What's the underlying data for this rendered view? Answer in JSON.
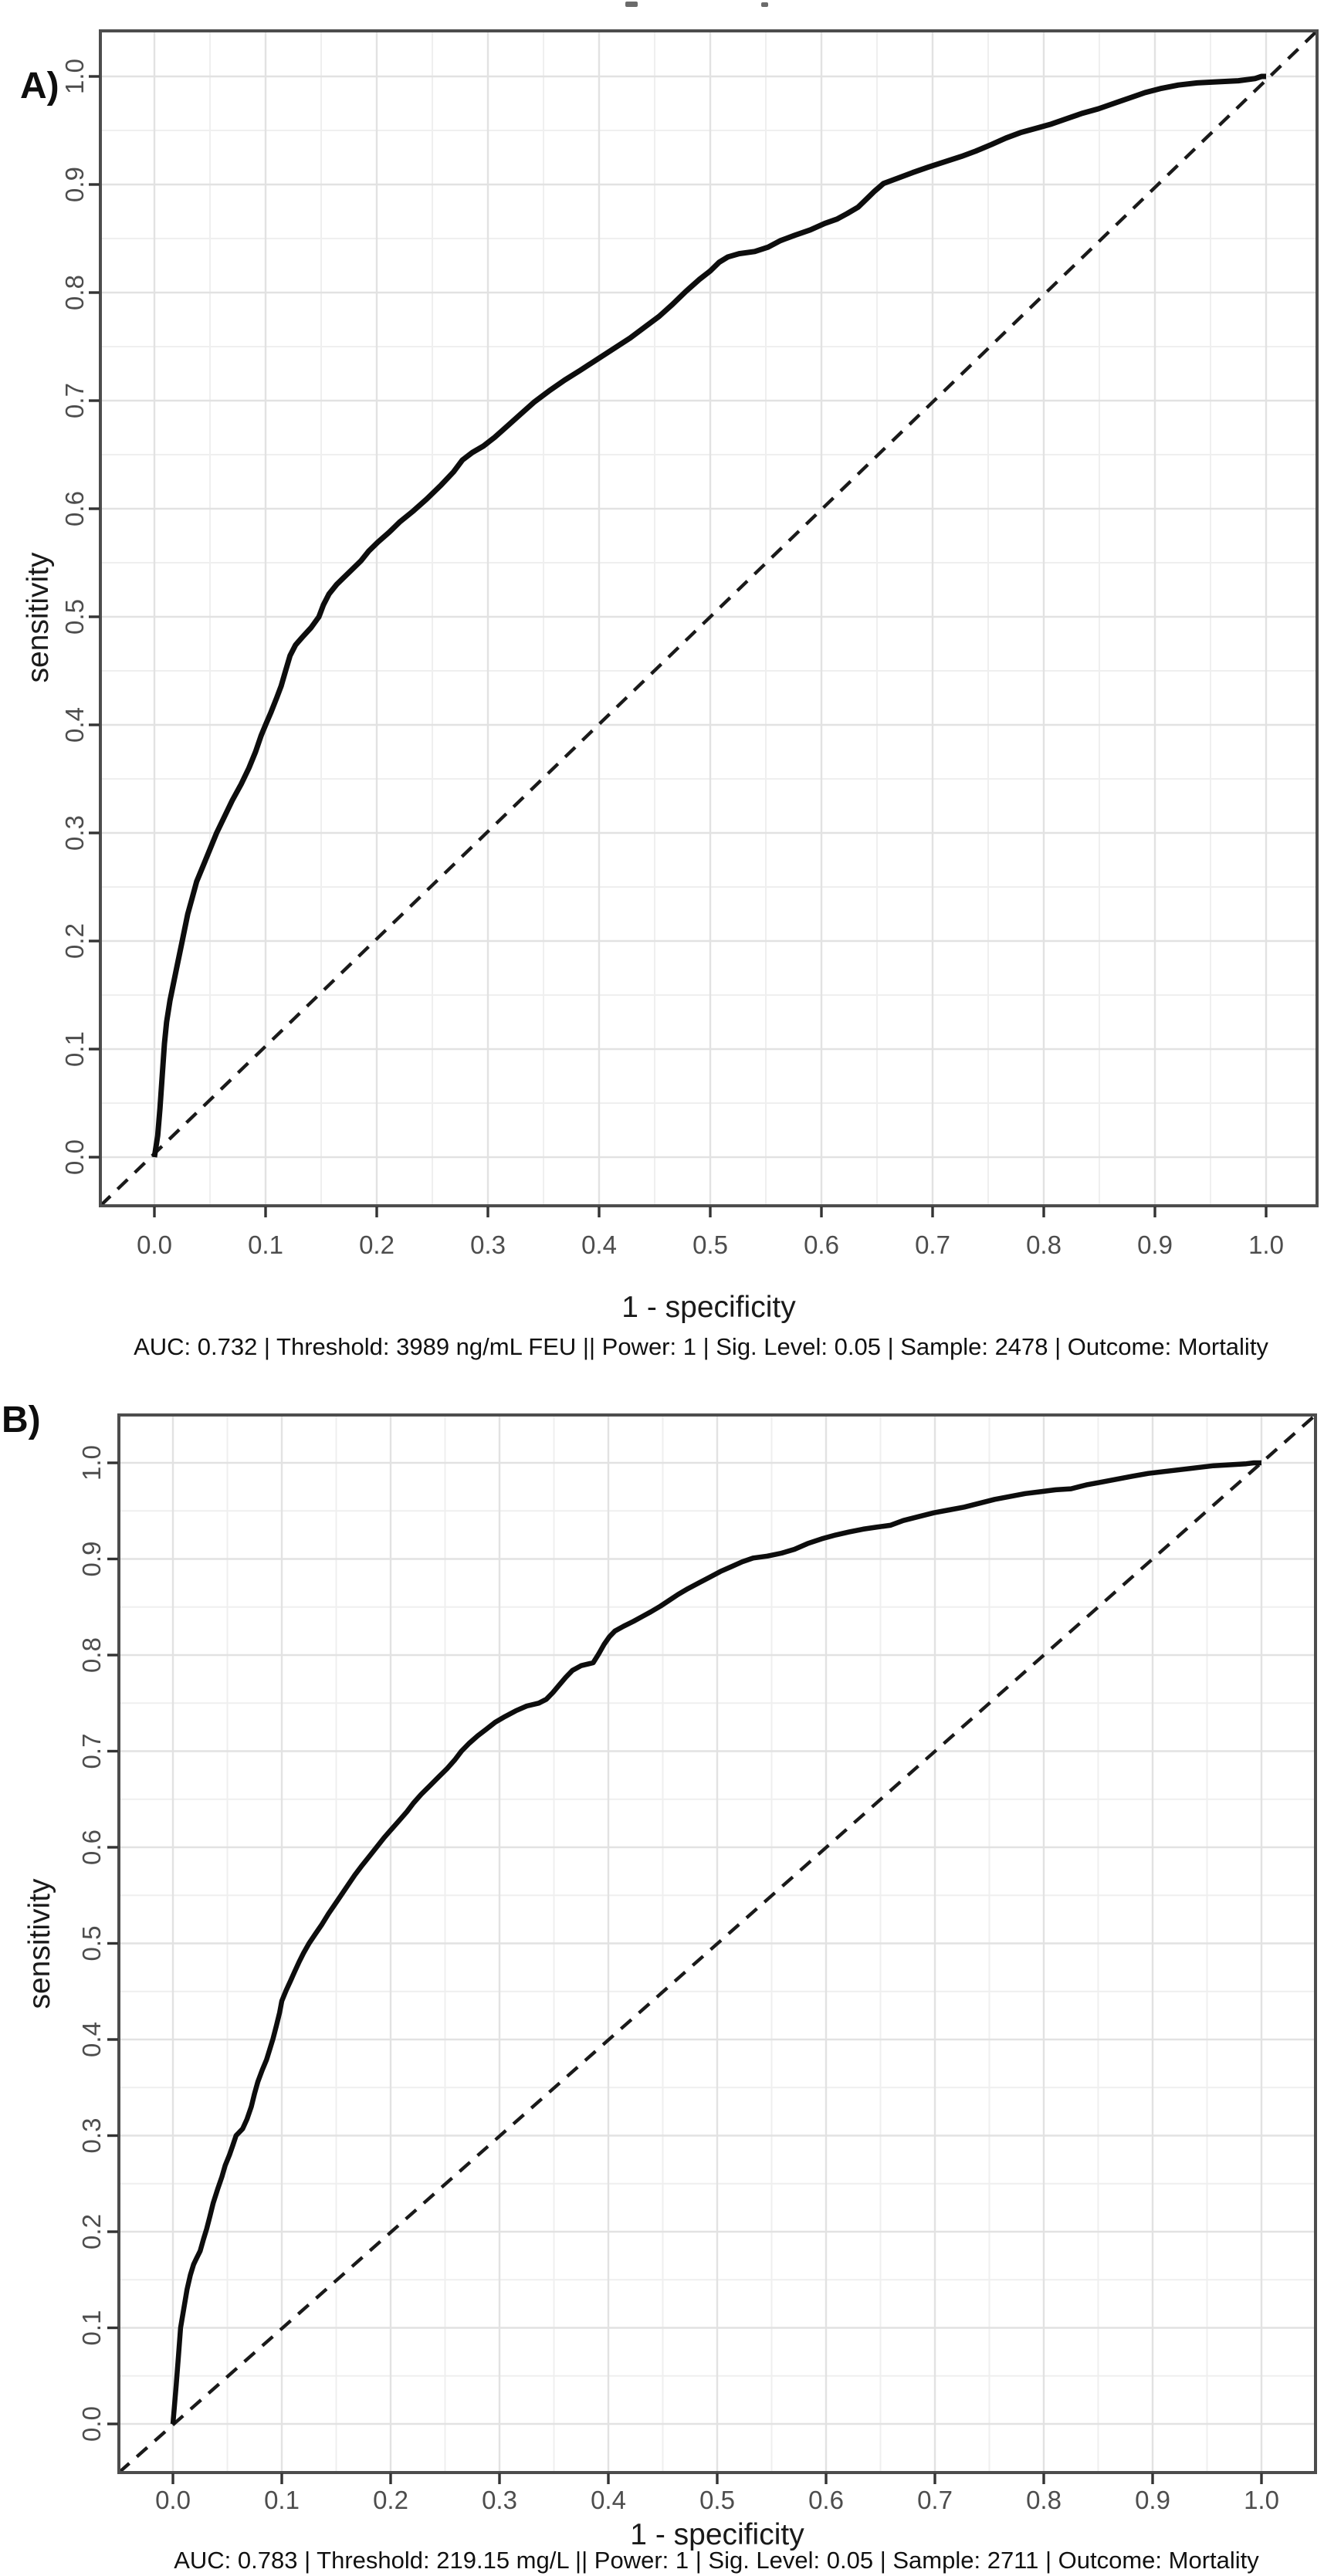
{
  "page": {
    "background": "#ffffff"
  },
  "colors": {
    "curve": "#0d0d0d",
    "diagonal": "#1a1a1a",
    "grid_major": "#e2e2e2",
    "grid_minor": "#efefef",
    "border": "#4d4d4d",
    "tick": "#333333",
    "tick_label": "#4d4d4d",
    "text": "#1a1a1a"
  },
  "figures": [
    {
      "panel_label": "A)",
      "caption": "AUC: 0.732 | Threshold: 3989 ng/mL FEU || Power: 1 | Sig. Level: 0.05 | Sample: 2478 | Outcome: Mortality",
      "stats": {
        "auc": 0.732,
        "threshold": "3989 ng/mL FEU",
        "power": 1,
        "sig_level": 0.05,
        "sample": 2478,
        "outcome": "Mortality"
      }
    },
    {
      "panel_label": "B)",
      "caption": "AUC: 0.783 | Threshold: 219.15 mg/L || Power: 1 | Sig. Level: 0.05 | Sample: 2711 | Outcome: Mortality",
      "stats": {
        "auc": 0.783,
        "threshold": "219.15 mg/L",
        "power": 1,
        "sig_level": 0.05,
        "sample": 2711,
        "outcome": "Mortality"
      }
    }
  ],
  "chart_data": [
    {
      "type": "line",
      "title": "",
      "xlabel": "1 - specificity",
      "ylabel": "sensitivity",
      "xlim": [
        0,
        1
      ],
      "ylim": [
        0,
        1
      ],
      "grid": "major+minor",
      "legend": "none",
      "x_tick_labels": [
        "0.0",
        "0.1",
        "0.2",
        "0.3",
        "0.4",
        "0.5",
        "0.6",
        "0.7",
        "0.8",
        "0.9",
        "1.0"
      ],
      "y_tick_labels": [
        "0.0",
        "0.1",
        "0.2",
        "0.3",
        "0.4",
        "0.5",
        "0.6",
        "0.7",
        "0.8",
        "0.9",
        "1.0"
      ],
      "series": [
        {
          "name": "roc-curve",
          "style": "solid",
          "points": [
            [
              0,
              0
            ],
            [
              0.003,
              0.02
            ],
            [
              0.005,
              0.045
            ],
            [
              0.007,
              0.075
            ],
            [
              0.009,
              0.105
            ],
            [
              0.011,
              0.125
            ],
            [
              0.014,
              0.145
            ],
            [
              0.017,
              0.16
            ],
            [
              0.02,
              0.175
            ],
            [
              0.024,
              0.195
            ],
            [
              0.027,
              0.21
            ],
            [
              0.03,
              0.225
            ],
            [
              0.034,
              0.24
            ],
            [
              0.038,
              0.255
            ],
            [
              0.044,
              0.27
            ],
            [
              0.05,
              0.285
            ],
            [
              0.056,
              0.3
            ],
            [
              0.063,
              0.315
            ],
            [
              0.07,
              0.33
            ],
            [
              0.078,
              0.345
            ],
            [
              0.085,
              0.36
            ],
            [
              0.091,
              0.375
            ],
            [
              0.096,
              0.39
            ],
            [
              0.1,
              0.4
            ],
            [
              0.105,
              0.412
            ],
            [
              0.11,
              0.425
            ],
            [
              0.114,
              0.436
            ],
            [
              0.118,
              0.45
            ],
            [
              0.122,
              0.464
            ],
            [
              0.127,
              0.474
            ],
            [
              0.133,
              0.481
            ],
            [
              0.141,
              0.49
            ],
            [
              0.148,
              0.5
            ],
            [
              0.152,
              0.511
            ],
            [
              0.157,
              0.521
            ],
            [
              0.164,
              0.53
            ],
            [
              0.171,
              0.537
            ],
            [
              0.179,
              0.545
            ],
            [
              0.186,
              0.552
            ],
            [
              0.193,
              0.561
            ],
            [
              0.201,
              0.569
            ],
            [
              0.211,
              0.578
            ],
            [
              0.221,
              0.588
            ],
            [
              0.233,
              0.598
            ],
            [
              0.245,
              0.609
            ],
            [
              0.258,
              0.622
            ],
            [
              0.269,
              0.634
            ],
            [
              0.277,
              0.645
            ],
            [
              0.286,
              0.652
            ],
            [
              0.296,
              0.658
            ],
            [
              0.306,
              0.666
            ],
            [
              0.318,
              0.677
            ],
            [
              0.33,
              0.688
            ],
            [
              0.342,
              0.699
            ],
            [
              0.355,
              0.709
            ],
            [
              0.369,
              0.719
            ],
            [
              0.383,
              0.728
            ],
            [
              0.398,
              0.738
            ],
            [
              0.413,
              0.748
            ],
            [
              0.428,
              0.758
            ],
            [
              0.441,
              0.768
            ],
            [
              0.454,
              0.778
            ],
            [
              0.466,
              0.789
            ],
            [
              0.478,
              0.801
            ],
            [
              0.49,
              0.812
            ],
            [
              0.5,
              0.82
            ],
            [
              0.508,
              0.828
            ],
            [
              0.516,
              0.833
            ],
            [
              0.526,
              0.836
            ],
            [
              0.54,
              0.838
            ],
            [
              0.552,
              0.842
            ],
            [
              0.563,
              0.848
            ],
            [
              0.576,
              0.853
            ],
            [
              0.59,
              0.858
            ],
            [
              0.603,
              0.864
            ],
            [
              0.614,
              0.868
            ],
            [
              0.623,
              0.873
            ],
            [
              0.633,
              0.879
            ],
            [
              0.641,
              0.887
            ],
            [
              0.648,
              0.894
            ],
            [
              0.656,
              0.901
            ],
            [
              0.669,
              0.906
            ],
            [
              0.682,
              0.911
            ],
            [
              0.696,
              0.916
            ],
            [
              0.711,
              0.921
            ],
            [
              0.726,
              0.926
            ],
            [
              0.739,
              0.931
            ],
            [
              0.753,
              0.937
            ],
            [
              0.766,
              0.943
            ],
            [
              0.779,
              0.948
            ],
            [
              0.793,
              0.952
            ],
            [
              0.807,
              0.956
            ],
            [
              0.821,
              0.961
            ],
            [
              0.835,
              0.966
            ],
            [
              0.849,
              0.97
            ],
            [
              0.863,
              0.975
            ],
            [
              0.877,
              0.98
            ],
            [
              0.891,
              0.985
            ],
            [
              0.906,
              0.989
            ],
            [
              0.921,
              0.992
            ],
            [
              0.938,
              0.994
            ],
            [
              0.956,
              0.995
            ],
            [
              0.975,
              0.996
            ],
            [
              0.99,
              0.998
            ],
            [
              0.996,
              1
            ],
            [
              1,
              1
            ]
          ]
        },
        {
          "name": "chance-diagonal",
          "style": "dashed",
          "points": [
            [
              0,
              0
            ],
            [
              1,
              1
            ]
          ]
        }
      ],
      "annotation": "AUC: 0.732 | Threshold: 3989 ng/mL FEU || Power: 1 | Sig. Level: 0.05 | Sample: 2478 | Outcome: Mortality"
    },
    {
      "type": "line",
      "title": "",
      "xlabel": "1 - specificity",
      "ylabel": "sensitivity",
      "xlim": [
        0,
        1
      ],
      "ylim": [
        0,
        1
      ],
      "grid": "major+minor",
      "legend": "none",
      "x_tick_labels": [
        "0.0",
        "0.1",
        "0.2",
        "0.3",
        "0.4",
        "0.5",
        "0.6",
        "0.7",
        "0.8",
        "0.9",
        "1.0"
      ],
      "y_tick_labels": [
        "0.0",
        "0.1",
        "0.2",
        "0.3",
        "0.4",
        "0.5",
        "0.6",
        "0.7",
        "0.8",
        "0.9",
        "1.0"
      ],
      "series": [
        {
          "name": "roc-curve",
          "style": "solid",
          "points": [
            [
              0,
              0
            ],
            [
              0.003,
              0.04
            ],
            [
              0.005,
              0.07
            ],
            [
              0.007,
              0.1
            ],
            [
              0.01,
              0.12
            ],
            [
              0.013,
              0.14
            ],
            [
              0.016,
              0.155
            ],
            [
              0.019,
              0.166
            ],
            [
              0.022,
              0.173
            ],
            [
              0.025,
              0.18
            ],
            [
              0.028,
              0.192
            ],
            [
              0.031,
              0.203
            ],
            [
              0.034,
              0.216
            ],
            [
              0.037,
              0.23
            ],
            [
              0.041,
              0.244
            ],
            [
              0.045,
              0.257
            ],
            [
              0.048,
              0.269
            ],
            [
              0.052,
              0.28
            ],
            [
              0.055,
              0.29
            ],
            [
              0.058,
              0.3
            ],
            [
              0.064,
              0.307
            ],
            [
              0.068,
              0.317
            ],
            [
              0.072,
              0.33
            ],
            [
              0.075,
              0.344
            ],
            [
              0.078,
              0.356
            ],
            [
              0.082,
              0.368
            ],
            [
              0.086,
              0.379
            ],
            [
              0.089,
              0.39
            ],
            [
              0.092,
              0.401
            ],
            [
              0.095,
              0.414
            ],
            [
              0.098,
              0.428
            ],
            [
              0.1,
              0.44
            ],
            [
              0.104,
              0.451
            ],
            [
              0.108,
              0.461
            ],
            [
              0.112,
              0.471
            ],
            [
              0.116,
              0.481
            ],
            [
              0.12,
              0.49
            ],
            [
              0.125,
              0.5
            ],
            [
              0.131,
              0.51
            ],
            [
              0.137,
              0.52
            ],
            [
              0.143,
              0.531
            ],
            [
              0.149,
              0.541
            ],
            [
              0.155,
              0.551
            ],
            [
              0.161,
              0.561
            ],
            [
              0.167,
              0.571
            ],
            [
              0.173,
              0.58
            ],
            [
              0.18,
              0.59
            ],
            [
              0.187,
              0.6
            ],
            [
              0.194,
              0.61
            ],
            [
              0.201,
              0.619
            ],
            [
              0.208,
              0.628
            ],
            [
              0.215,
              0.637
            ],
            [
              0.221,
              0.646
            ],
            [
              0.228,
              0.655
            ],
            [
              0.236,
              0.664
            ],
            [
              0.244,
              0.673
            ],
            [
              0.252,
              0.682
            ],
            [
              0.259,
              0.691
            ],
            [
              0.265,
              0.7
            ],
            [
              0.272,
              0.708
            ],
            [
              0.28,
              0.716
            ],
            [
              0.288,
              0.723
            ],
            [
              0.296,
              0.73
            ],
            [
              0.305,
              0.736
            ],
            [
              0.315,
              0.742
            ],
            [
              0.325,
              0.747
            ],
            [
              0.336,
              0.75
            ],
            [
              0.343,
              0.754
            ],
            [
              0.349,
              0.761
            ],
            [
              0.355,
              0.769
            ],
            [
              0.361,
              0.777
            ],
            [
              0.367,
              0.784
            ],
            [
              0.375,
              0.789
            ],
            [
              0.386,
              0.792
            ],
            [
              0.391,
              0.801
            ],
            [
              0.396,
              0.811
            ],
            [
              0.401,
              0.819
            ],
            [
              0.406,
              0.825
            ],
            [
              0.414,
              0.83
            ],
            [
              0.423,
              0.835
            ],
            [
              0.431,
              0.84
            ],
            [
              0.439,
              0.845
            ],
            [
              0.448,
              0.851
            ],
            [
              0.456,
              0.857
            ],
            [
              0.464,
              0.863
            ],
            [
              0.473,
              0.869
            ],
            [
              0.483,
              0.875
            ],
            [
              0.493,
              0.881
            ],
            [
              0.503,
              0.887
            ],
            [
              0.513,
              0.892
            ],
            [
              0.523,
              0.897
            ],
            [
              0.533,
              0.901
            ],
            [
              0.546,
              0.903
            ],
            [
              0.559,
              0.906
            ],
            [
              0.571,
              0.91
            ],
            [
              0.583,
              0.916
            ],
            [
              0.596,
              0.921
            ],
            [
              0.609,
              0.925
            ],
            [
              0.621,
              0.928
            ],
            [
              0.634,
              0.931
            ],
            [
              0.646,
              0.933
            ],
            [
              0.659,
              0.935
            ],
            [
              0.671,
              0.94
            ],
            [
              0.685,
              0.944
            ],
            [
              0.699,
              0.948
            ],
            [
              0.713,
              0.951
            ],
            [
              0.727,
              0.954
            ],
            [
              0.741,
              0.958
            ],
            [
              0.755,
              0.962
            ],
            [
              0.769,
              0.965
            ],
            [
              0.783,
              0.968
            ],
            [
              0.797,
              0.97
            ],
            [
              0.811,
              0.972
            ],
            [
              0.825,
              0.973
            ],
            [
              0.839,
              0.977
            ],
            [
              0.853,
              0.98
            ],
            [
              0.867,
              0.983
            ],
            [
              0.881,
              0.986
            ],
            [
              0.896,
              0.989
            ],
            [
              0.911,
              0.991
            ],
            [
              0.926,
              0.993
            ],
            [
              0.941,
              0.995
            ],
            [
              0.956,
              0.997
            ],
            [
              0.971,
              0.998
            ],
            [
              0.986,
              0.999
            ],
            [
              0.993,
              1
            ],
            [
              1,
              1
            ]
          ]
        },
        {
          "name": "chance-diagonal",
          "style": "dashed",
          "points": [
            [
              0,
              0
            ],
            [
              1,
              1
            ]
          ]
        }
      ],
      "annotation": "AUC: 0.783 | Threshold: 219.15 mg/L || Power: 1 | Sig. Level: 0.05 | Sample: 2711 | Outcome: Mortality"
    }
  ]
}
